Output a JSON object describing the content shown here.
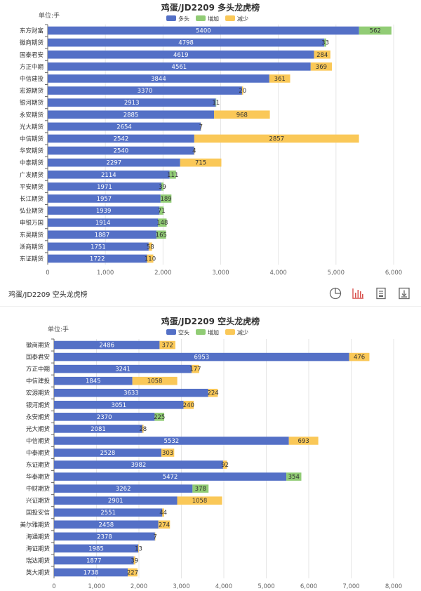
{
  "toolbar": {
    "title": "鸡蛋/JD2209 空头龙虎榜",
    "icons": [
      "pie-chart-icon",
      "bar-chart-icon",
      "document-icon",
      "download-icon"
    ],
    "accent": "#d9534f"
  },
  "colors": {
    "base": "#5470c6",
    "increase": "#91cc75",
    "decrease": "#fac858"
  },
  "chart_data": [
    {
      "type": "bar",
      "orientation": "horizontal",
      "stacked": true,
      "title": "鸡蛋/JD2209 多头龙虎榜",
      "unit_label": "单位:手",
      "legend": [
        "多头",
        "增加",
        "减少"
      ],
      "legend_position": "top-center",
      "xlim": [
        0,
        6000
      ],
      "xticks": [
        "0",
        "1,000",
        "2,000",
        "3,000",
        "4,000",
        "5,000",
        "6,000"
      ],
      "grid": true,
      "categories": [
        "东方财富",
        "徽商期货",
        "国泰君安",
        "方正中期",
        "中信建投",
        "宏源期货",
        "银河期货",
        "永安期货",
        "光大期货",
        "中信期货",
        "华安期货",
        "中泰期货",
        "广发期货",
        "平安期货",
        "长江期货",
        "弘业期货",
        "申银万国",
        "东吴期货",
        "浙商期货",
        "东证期货"
      ],
      "series": [
        {
          "name": "多头",
          "values": [
            5400,
            4798,
            4619,
            4561,
            3844,
            3370,
            2913,
            2885,
            2654,
            2542,
            2540,
            2297,
            2114,
            1971,
            1957,
            1939,
            1914,
            1887,
            1751,
            1722
          ]
        },
        {
          "name": "增加",
          "values": [
            562,
            33,
            0,
            0,
            0,
            0,
            11,
            0,
            0,
            0,
            0,
            0,
            111,
            39,
            189,
            71,
            148,
            165,
            0,
            0
          ]
        },
        {
          "name": "减少",
          "values": [
            0,
            0,
            284,
            369,
            361,
            20,
            0,
            968,
            7,
            2857,
            4,
            715,
            0,
            0,
            0,
            0,
            0,
            0,
            58,
            110
          ]
        }
      ]
    },
    {
      "type": "bar",
      "orientation": "horizontal",
      "stacked": true,
      "title": "鸡蛋/JD2209 空头龙虎榜",
      "unit_label": "单位:手",
      "legend": [
        "空头",
        "增加",
        "减少"
      ],
      "legend_position": "top-center",
      "xlim": [
        0,
        8000
      ],
      "xticks": [
        "0",
        "1,000",
        "2,000",
        "3,000",
        "4,000",
        "5,000",
        "6,000",
        "7,000",
        "8,000"
      ],
      "grid": true,
      "categories": [
        "徽商期货",
        "国泰君安",
        "方正中期",
        "中信建投",
        "宏源期货",
        "银河期货",
        "永安期货",
        "光大期货",
        "中信期货",
        "中泰期货",
        "东证期货",
        "华泰期货",
        "中财期货",
        "兴证期货",
        "国投安信",
        "美尔雅期货",
        "海通期货",
        "海证期货",
        "瑞达期货",
        "英大期货"
      ],
      "series": [
        {
          "name": "空头",
          "values": [
            2486,
            6953,
            3241,
            1845,
            3633,
            3051,
            2370,
            2081,
            5532,
            2528,
            3982,
            5472,
            3262,
            2901,
            2551,
            2458,
            2378,
            1985,
            1877,
            1738
          ]
        },
        {
          "name": "增加",
          "values": [
            0,
            0,
            0,
            0,
            0,
            0,
            225,
            0,
            0,
            0,
            0,
            354,
            378,
            0,
            0,
            0,
            0,
            0,
            0,
            0
          ]
        },
        {
          "name": "减少",
          "values": [
            372,
            476,
            177,
            1058,
            224,
            240,
            0,
            28,
            693,
            303,
            92,
            0,
            0,
            1058,
            44,
            274,
            7,
            13,
            39,
            227
          ]
        }
      ]
    }
  ]
}
